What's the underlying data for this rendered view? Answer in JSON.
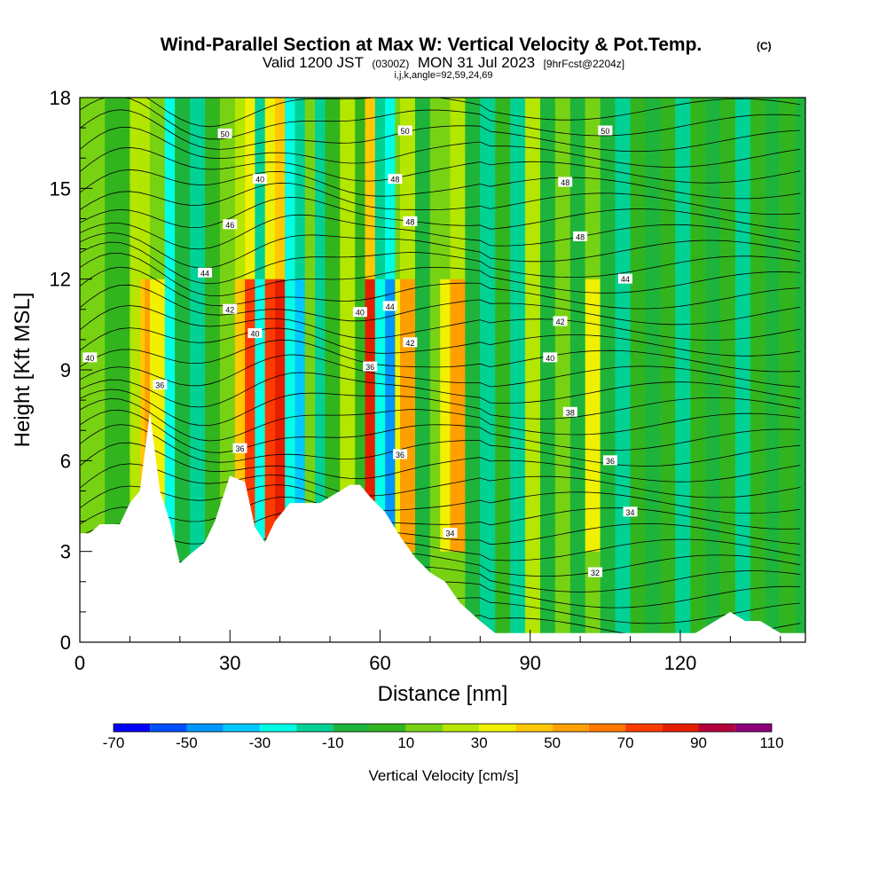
{
  "chart_data": {
    "type": "heatmap",
    "title": "Wind-Parallel Section at Max W: Vertical Velocity & Pot.Temp.",
    "title_mark": "(C)",
    "subtitle_parts": [
      "Valid 1200 JST",
      "(0300Z)",
      "MON 31 Jul 2023",
      "[9hrFcst@2204z]"
    ],
    "subtitle2": "i,j,k,angle=92,59,24,69",
    "xlabel": "Distance [nm]",
    "ylabel": "Height [Kft MSL]",
    "xlim": [
      0,
      145
    ],
    "ylim": [
      0,
      18
    ],
    "xticks": [
      0,
      30,
      60,
      90,
      120
    ],
    "yticks": [
      0,
      3,
      6,
      9,
      12,
      15,
      18
    ],
    "colorbar": {
      "label": "Vertical Velocity [cm/s]",
      "ticks": [
        -70,
        -50,
        -30,
        -10,
        10,
        30,
        50,
        70,
        90,
        110
      ],
      "bounds": [
        -70,
        -60,
        -50,
        -40,
        -30,
        -20,
        -10,
        0,
        10,
        20,
        30,
        40,
        50,
        60,
        70,
        80,
        90,
        100,
        110
      ],
      "colors": [
        "#0000ff",
        "#0050ff",
        "#0096ff",
        "#00c8ff",
        "#00ffe6",
        "#00d296",
        "#1eb43c",
        "#32b41e",
        "#78d214",
        "#b4e600",
        "#f0f000",
        "#ffc800",
        "#ffa000",
        "#ff7800",
        "#ff3c00",
        "#e61e00",
        "#b4003c",
        "#8c0078"
      ]
    },
    "terrain_kft": [
      [
        0,
        3.6
      ],
      [
        2,
        3.6
      ],
      [
        4,
        3.9
      ],
      [
        8,
        3.9
      ],
      [
        10,
        4.6
      ],
      [
        12,
        5.0
      ],
      [
        14,
        7.6
      ],
      [
        16,
        5.0
      ],
      [
        18,
        4.0
      ],
      [
        20,
        2.6
      ],
      [
        22,
        2.9
      ],
      [
        25,
        3.3
      ],
      [
        27,
        4.0
      ],
      [
        30,
        5.5
      ],
      [
        33,
        5.3
      ],
      [
        35,
        3.8
      ],
      [
        37,
        3.3
      ],
      [
        39,
        4.0
      ],
      [
        42,
        4.6
      ],
      [
        45,
        4.6
      ],
      [
        48,
        4.6
      ],
      [
        51,
        4.9
      ],
      [
        54,
        5.2
      ],
      [
        56,
        5.2
      ],
      [
        58,
        4.8
      ],
      [
        61,
        4.3
      ],
      [
        64,
        3.5
      ],
      [
        67,
        2.8
      ],
      [
        70,
        2.3
      ],
      [
        73,
        2.0
      ],
      [
        76,
        1.3
      ],
      [
        78,
        1.0
      ],
      [
        80,
        0.7
      ],
      [
        83,
        0.3
      ],
      [
        88,
        0.3
      ],
      [
        93,
        0.3
      ],
      [
        98,
        0.3
      ],
      [
        103,
        0.3
      ],
      [
        108,
        0.3
      ],
      [
        113,
        0.3
      ],
      [
        118,
        0.3
      ],
      [
        123,
        0.3
      ],
      [
        127,
        0.7
      ],
      [
        130,
        1.0
      ],
      [
        133,
        0.7
      ],
      [
        136,
        0.7
      ],
      [
        140,
        0.3
      ],
      [
        145,
        0.3
      ]
    ],
    "isentrope_labels": [
      {
        "text": "50",
        "x": 29,
        "y": 16.8
      },
      {
        "text": "50",
        "x": 65,
        "y": 16.9
      },
      {
        "text": "50",
        "x": 105,
        "y": 16.9
      },
      {
        "text": "40",
        "x": 36,
        "y": 15.3
      },
      {
        "text": "48",
        "x": 63,
        "y": 15.3
      },
      {
        "text": "48",
        "x": 97,
        "y": 15.2
      },
      {
        "text": "46",
        "x": 30,
        "y": 13.8
      },
      {
        "text": "48",
        "x": 66,
        "y": 13.9
      },
      {
        "text": "48",
        "x": 100,
        "y": 13.4
      },
      {
        "text": "44",
        "x": 25,
        "y": 12.2
      },
      {
        "text": "44",
        "x": 62,
        "y": 11.1
      },
      {
        "text": "44",
        "x": 109,
        "y": 12.0
      },
      {
        "text": "42",
        "x": 30,
        "y": 11.0
      },
      {
        "text": "40",
        "x": 56,
        "y": 10.9
      },
      {
        "text": "42",
        "x": 96,
        "y": 10.6
      },
      {
        "text": "40",
        "x": 35,
        "y": 10.2
      },
      {
        "text": "42",
        "x": 66,
        "y": 9.9
      },
      {
        "text": "40",
        "x": 2,
        "y": 9.4
      },
      {
        "text": "40",
        "x": 94,
        "y": 9.4
      },
      {
        "text": "36",
        "x": 16,
        "y": 8.5
      },
      {
        "text": "36",
        "x": 58,
        "y": 9.1
      },
      {
        "text": "38",
        "x": 98,
        "y": 7.6
      },
      {
        "text": "36",
        "x": 32,
        "y": 6.4
      },
      {
        "text": "36",
        "x": 64,
        "y": 6.2
      },
      {
        "text": "36",
        "x": 106,
        "y": 6.0
      },
      {
        "text": "34",
        "x": 110,
        "y": 4.3
      },
      {
        "text": "34",
        "x": 74,
        "y": 3.6
      },
      {
        "text": "32",
        "x": 103,
        "y": 2.3
      }
    ]
  }
}
